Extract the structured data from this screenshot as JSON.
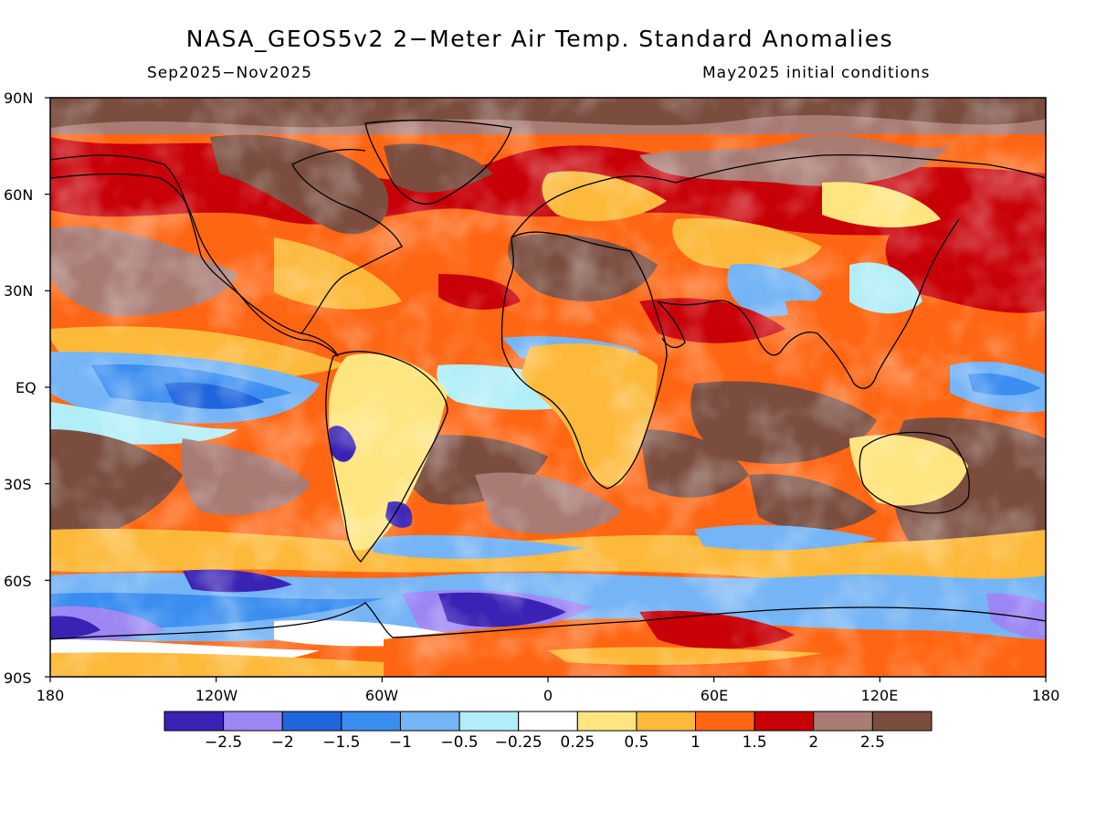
{
  "title": "NASA_GEOS5v2 2−Meter Air Temp. Standard Anomalies",
  "period": "Sep2025−Nov2025",
  "init": "May2025 initial conditions",
  "lat_labels": [
    "90N",
    "60N",
    "30N",
    "EQ",
    "30S",
    "60S",
    "90S"
  ],
  "lon_labels": [
    "180",
    "120W",
    "60W",
    "0",
    "60E",
    "120E",
    "180"
  ],
  "colorbar": {
    "colors": [
      "#3a22b4",
      "#9c86f4",
      "#1f66dd",
      "#3b8ef0",
      "#75b4f5",
      "#b2eef8",
      "#ffffff",
      "#ffe57f",
      "#fdb93a",
      "#fe6613",
      "#c80007",
      "#a87b73",
      "#7a4d3f"
    ],
    "labels": [
      "−2.5",
      "−2",
      "−1.5",
      "−1",
      "−0.5",
      "−0.25",
      "0.25",
      "0.5",
      "1",
      "1.5",
      "2",
      "2.5"
    ]
  }
}
